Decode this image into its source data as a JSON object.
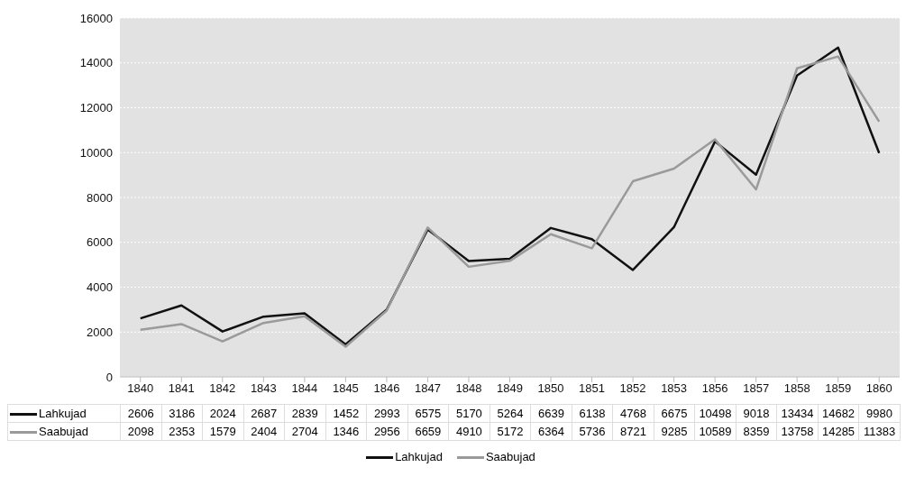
{
  "chart_data": {
    "type": "line",
    "categories": [
      "1840",
      "1841",
      "1842",
      "1843",
      "1844",
      "1845",
      "1846",
      "1847",
      "1848",
      "1849",
      "1850",
      "1851",
      "1852",
      "1853",
      "1856",
      "1857",
      "1858",
      "1859",
      "1860"
    ],
    "series": [
      {
        "name": "Lahkujad",
        "color": "#111111",
        "values": [
          2606,
          3186,
          2024,
          2687,
          2839,
          1452,
          2993,
          6575,
          5170,
          5264,
          6639,
          6138,
          4768,
          6675,
          10498,
          9018,
          13434,
          14682,
          9980
        ]
      },
      {
        "name": "Saabujad",
        "color": "#9a9a9a",
        "values": [
          2098,
          2353,
          1579,
          2404,
          2704,
          1346,
          2956,
          6659,
          4910,
          5172,
          6364,
          5736,
          8721,
          9285,
          10589,
          8359,
          13758,
          14285,
          11383
        ]
      }
    ],
    "ylim": [
      0,
      16000
    ],
    "yticks": [
      0,
      2000,
      4000,
      6000,
      8000,
      10000,
      12000,
      14000,
      16000
    ],
    "grid": "y",
    "legend": "bottom",
    "data_labels": true,
    "marker": "none",
    "line_style": "solid"
  }
}
